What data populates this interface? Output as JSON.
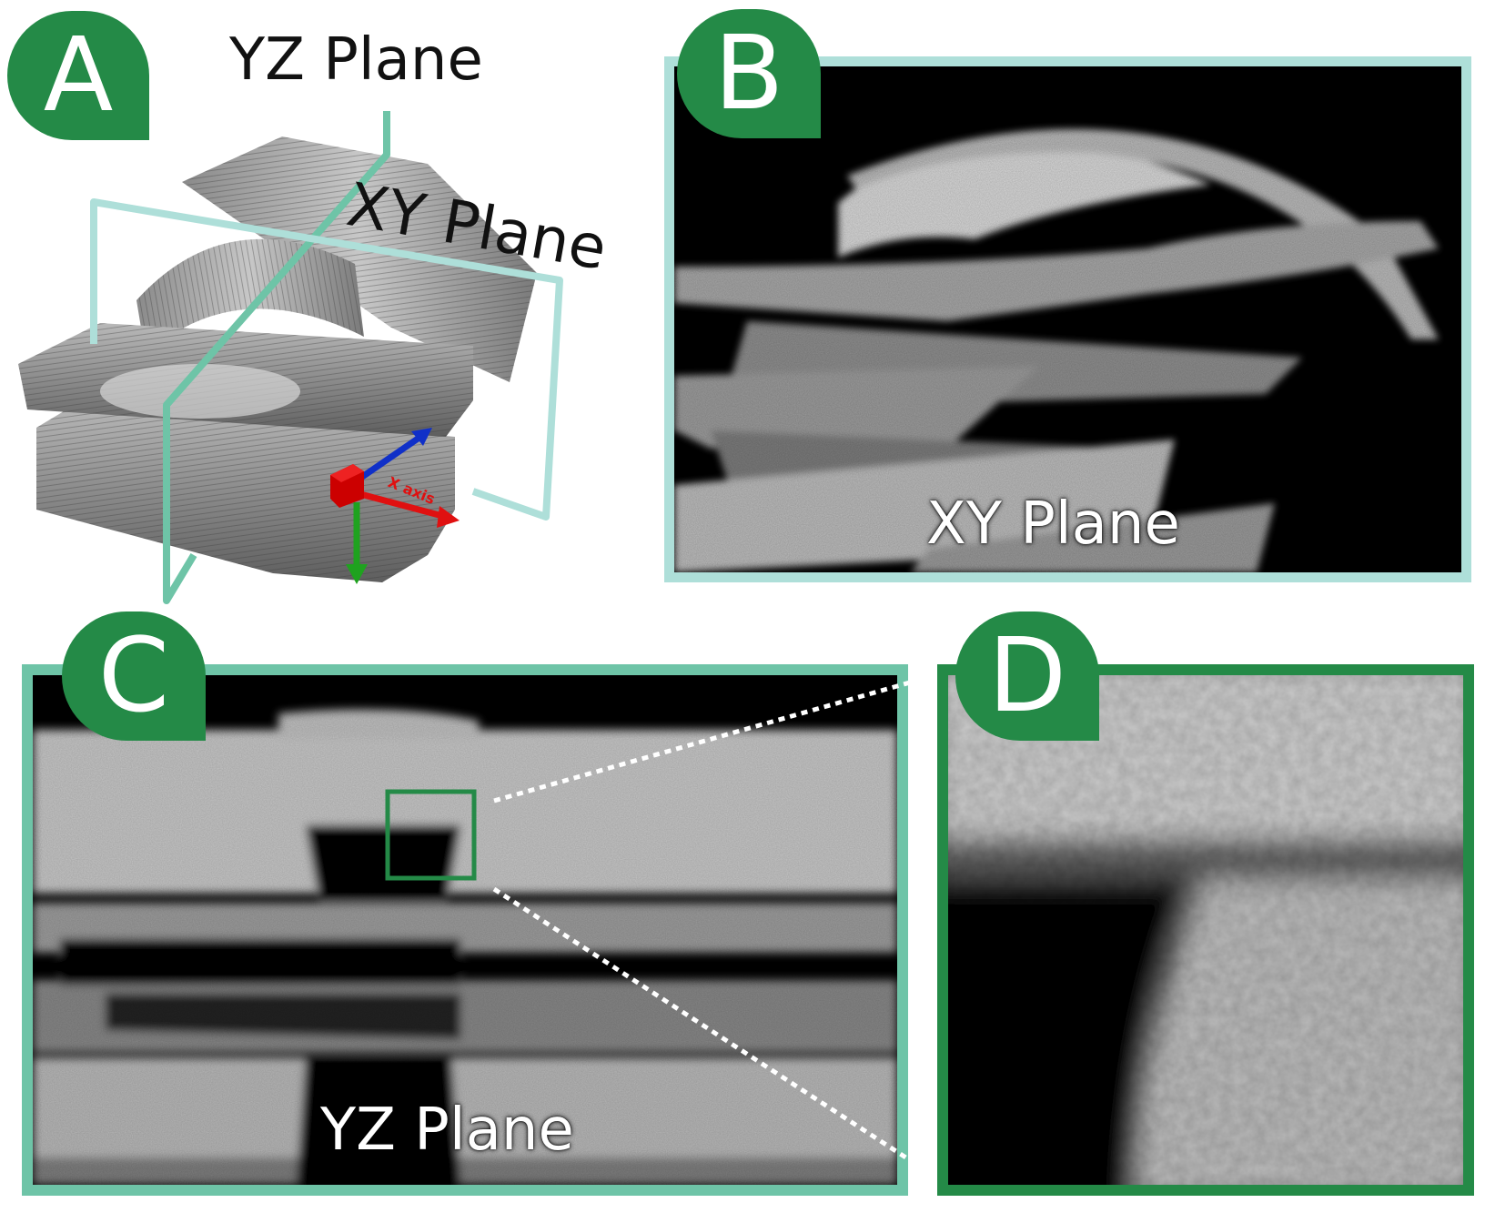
{
  "panels": {
    "a": {
      "badge": "A",
      "yz_label": "YZ Plane",
      "xy_label": "XY Plane",
      "axis_label": "X axis"
    },
    "b": {
      "badge": "B",
      "plane_label": "XY Plane"
    },
    "c": {
      "badge": "C",
      "plane_label": "YZ Plane"
    },
    "d": {
      "badge": "D"
    }
  },
  "colors": {
    "badge_green": "#248a47",
    "xy_frame": "#aedfd9",
    "yz_frame": "#6ec4a7",
    "zoom_frame": "#248a47",
    "axis_x": "#e01010",
    "axis_y": "#1fa21f",
    "axis_z": "#1030c8"
  }
}
